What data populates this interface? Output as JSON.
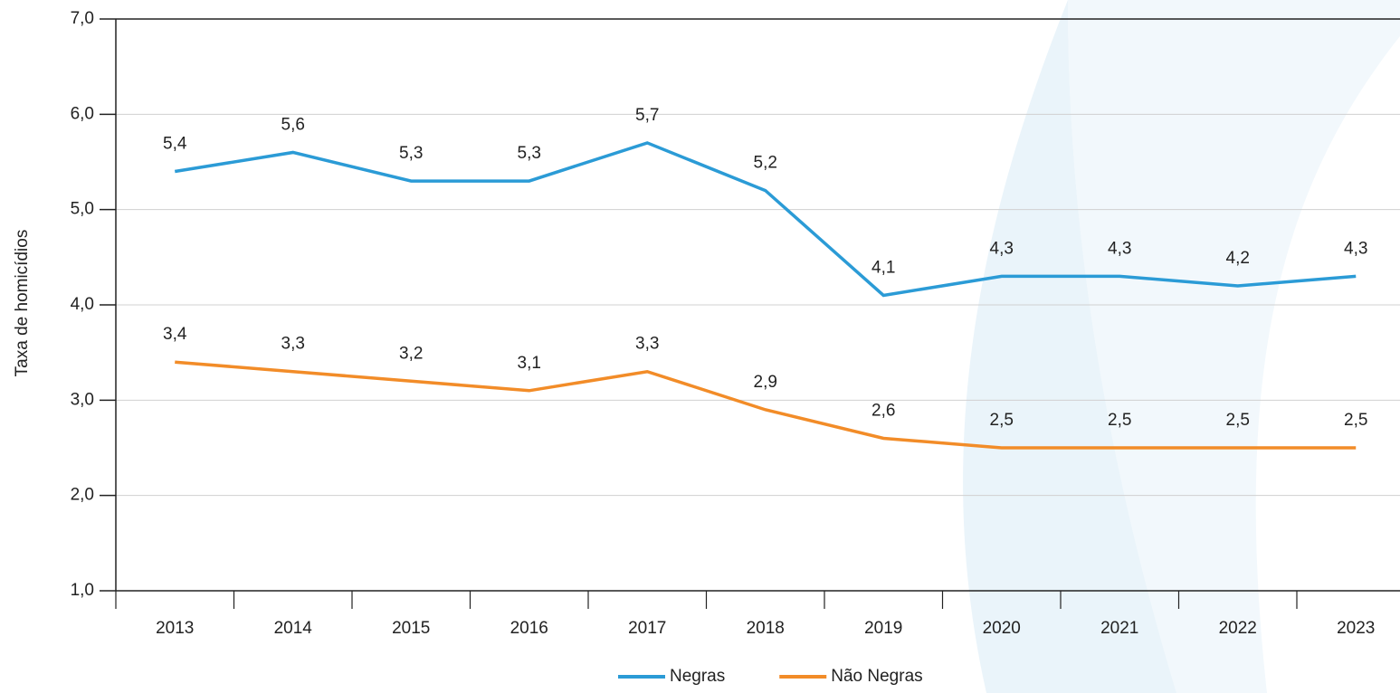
{
  "chart_data": {
    "type": "line",
    "y_axis_label": "Taxa de homicídios",
    "categories": [
      "2013",
      "2014",
      "2015",
      "2016",
      "2017",
      "2018",
      "2019",
      "2020",
      "2021",
      "2022",
      "2023"
    ],
    "series": [
      {
        "name": "Negras",
        "color": "#2b9bd6",
        "values": [
          5.4,
          5.6,
          5.3,
          5.3,
          5.7,
          5.2,
          4.1,
          4.3,
          4.3,
          4.2,
          4.3
        ],
        "value_labels": [
          "5,4",
          "5,6",
          "5,3",
          "5,3",
          "5,7",
          "5,2",
          "4,1",
          "4,3",
          "4,3",
          "4,2",
          "4,3"
        ]
      },
      {
        "name": "Não Negras",
        "color": "#f28c28",
        "values": [
          3.4,
          3.3,
          3.2,
          3.1,
          3.3,
          2.9,
          2.6,
          2.5,
          2.5,
          2.5,
          2.5
        ],
        "value_labels": [
          "3,4",
          "3,3",
          "3,2",
          "3,1",
          "3,3",
          "2,9",
          "2,6",
          "2,5",
          "2,5",
          "2,5",
          "2,5"
        ]
      }
    ],
    "ylim": [
      1.0,
      7.0
    ],
    "yticks": [
      {
        "value": 1.0,
        "label": "1,0"
      },
      {
        "value": 2.0,
        "label": "2,0"
      },
      {
        "value": 3.0,
        "label": "3,0"
      },
      {
        "value": 4.0,
        "label": "4,0"
      },
      {
        "value": 5.0,
        "label": "5,0"
      },
      {
        "value": 6.0,
        "label": "6,0"
      },
      {
        "value": 7.0,
        "label": "7,0"
      }
    ],
    "grid": true,
    "legend": "bottom"
  }
}
